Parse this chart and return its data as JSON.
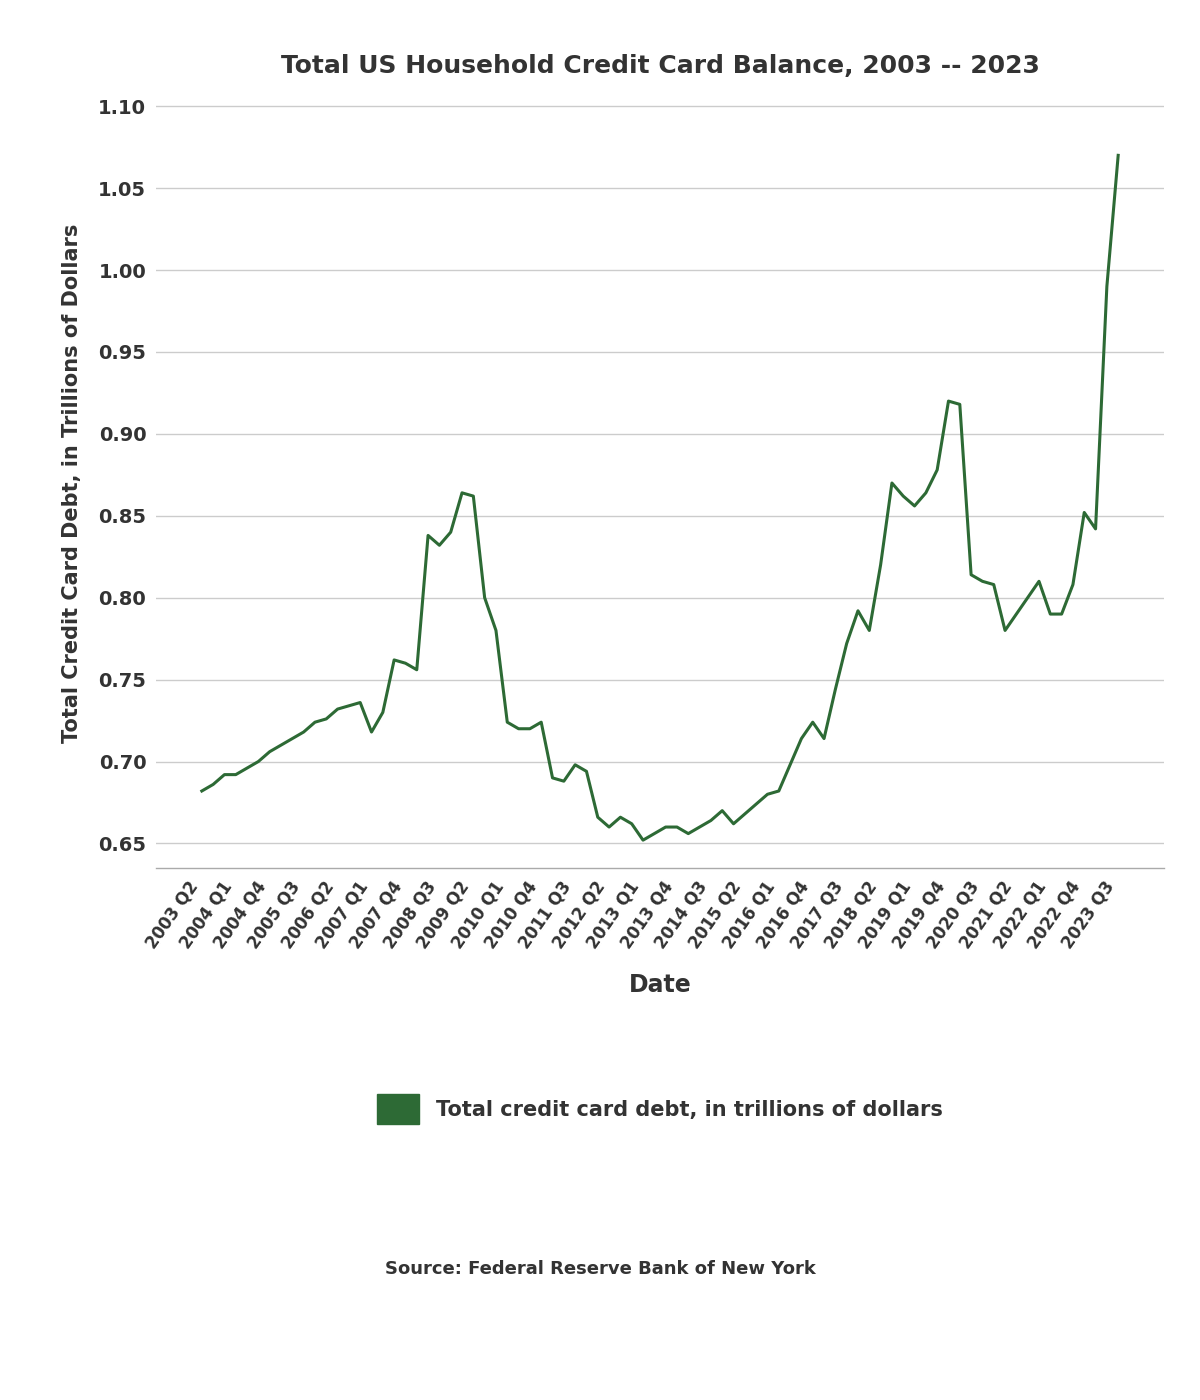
{
  "title": "Total US Household Credit Card Balance, 2003 -- 2023",
  "ylabel": "Total Credit Card Debt, in Trillions of Dollars",
  "xlabel": "Date",
  "line_color": "#2d6a35",
  "legend_label": "Total credit card debt, in trillions of dollars",
  "source_text": "Source: Federal Reserve Bank of New York",
  "background_color": "#ffffff",
  "grid_color": "#cccccc",
  "ylim": [
    0.635,
    1.105
  ],
  "yticks": [
    0.65,
    0.7,
    0.75,
    0.8,
    0.85,
    0.9,
    0.95,
    1.0,
    1.05,
    1.1
  ],
  "dates": [
    "2003 Q2",
    "2003 Q3",
    "2003 Q4",
    "2004 Q1",
    "2004 Q2",
    "2004 Q3",
    "2004 Q4",
    "2005 Q1",
    "2005 Q2",
    "2005 Q3",
    "2005 Q4",
    "2006 Q1",
    "2006 Q2",
    "2006 Q3",
    "2006 Q4",
    "2007 Q1",
    "2007 Q2",
    "2007 Q3",
    "2007 Q4",
    "2008 Q1",
    "2008 Q2",
    "2008 Q3",
    "2008 Q4",
    "2009 Q1",
    "2009 Q2",
    "2009 Q3",
    "2009 Q4",
    "2010 Q1",
    "2010 Q2",
    "2010 Q3",
    "2010 Q4",
    "2011 Q1",
    "2011 Q2",
    "2011 Q3",
    "2011 Q4",
    "2012 Q1",
    "2012 Q2",
    "2012 Q3",
    "2012 Q4",
    "2013 Q1",
    "2013 Q2",
    "2013 Q3",
    "2013 Q4",
    "2014 Q1",
    "2014 Q2",
    "2014 Q3",
    "2014 Q4",
    "2015 Q1",
    "2015 Q2",
    "2015 Q3",
    "2015 Q4",
    "2016 Q1",
    "2016 Q2",
    "2016 Q3",
    "2016 Q4",
    "2017 Q1",
    "2017 Q2",
    "2017 Q3",
    "2017 Q4",
    "2018 Q1",
    "2018 Q2",
    "2018 Q3",
    "2018 Q4",
    "2019 Q1",
    "2019 Q2",
    "2019 Q3",
    "2019 Q4",
    "2020 Q1",
    "2020 Q2",
    "2020 Q3",
    "2020 Q4",
    "2021 Q1",
    "2021 Q2",
    "2021 Q3",
    "2021 Q4",
    "2022 Q1",
    "2022 Q2",
    "2022 Q3",
    "2022 Q4",
    "2023 Q1",
    "2023 Q2",
    "2023 Q3"
  ],
  "values": [
    0.682,
    0.686,
    0.692,
    0.692,
    0.696,
    0.7,
    0.706,
    0.71,
    0.714,
    0.718,
    0.724,
    0.726,
    0.732,
    0.734,
    0.736,
    0.718,
    0.73,
    0.762,
    0.76,
    0.756,
    0.838,
    0.832,
    0.84,
    0.864,
    0.862,
    0.8,
    0.78,
    0.724,
    0.72,
    0.72,
    0.724,
    0.69,
    0.688,
    0.698,
    0.694,
    0.666,
    0.66,
    0.666,
    0.662,
    0.652,
    0.656,
    0.66,
    0.66,
    0.656,
    0.66,
    0.664,
    0.67,
    0.662,
    0.668,
    0.674,
    0.68,
    0.682,
    0.698,
    0.714,
    0.724,
    0.714,
    0.744,
    0.772,
    0.792,
    0.78,
    0.82,
    0.87,
    0.862,
    0.856,
    0.864,
    0.878,
    0.92,
    0.918,
    0.814,
    0.81,
    0.808,
    0.78,
    0.79,
    0.8,
    0.81,
    0.79,
    0.79,
    0.808,
    0.852,
    0.842,
    0.99,
    1.07
  ],
  "xtick_show": [
    "2003 Q2",
    "2004 Q1",
    "2004 Q4",
    "2005 Q3",
    "2006 Q2",
    "2007 Q1",
    "2007 Q4",
    "2008 Q3",
    "2009 Q2",
    "2010 Q1",
    "2010 Q4",
    "2011 Q3",
    "2012 Q2",
    "2013 Q1",
    "2013 Q4",
    "2014 Q3",
    "2015 Q2",
    "2016 Q1",
    "2016 Q4",
    "2017 Q3",
    "2018 Q2",
    "2019 Q1",
    "2019 Q4",
    "2020 Q3",
    "2021 Q2",
    "2022 Q1",
    "2022 Q4",
    "2023 Q3"
  ],
  "title_fontsize": 18,
  "ylabel_fontsize": 15,
  "xlabel_fontsize": 17,
  "ytick_fontsize": 14,
  "xtick_fontsize": 12,
  "legend_fontsize": 15,
  "source_fontsize": 13
}
